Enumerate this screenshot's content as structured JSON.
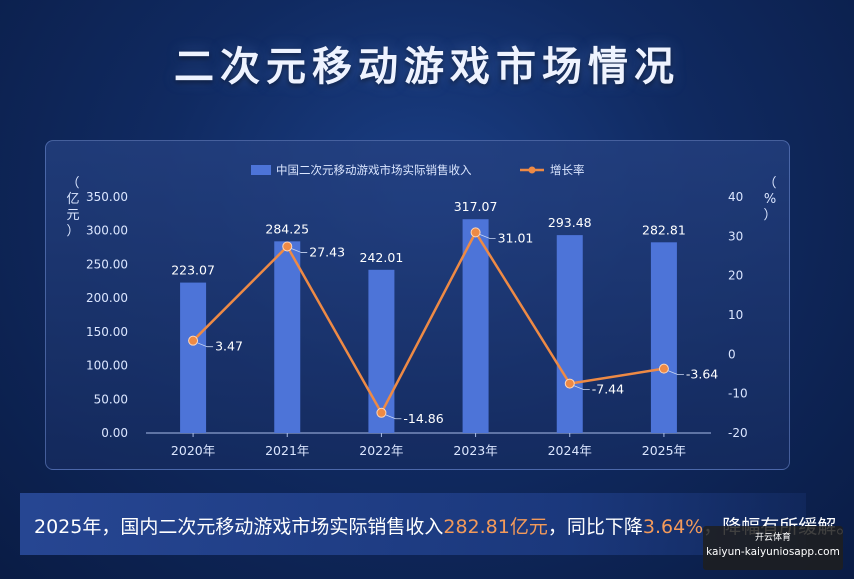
{
  "title": "二次元移动游戏市场情况",
  "chart_data": {
    "type": "bar+line",
    "categories": [
      "2020年",
      "2021年",
      "2022年",
      "2023年",
      "2024年",
      "2025年"
    ],
    "series": [
      {
        "name": "中国二次元移动游戏市场实际销售收入",
        "type": "bar",
        "axis": "left",
        "values": [
          223.07,
          284.25,
          242.01,
          317.07,
          293.48,
          282.81
        ],
        "labels": [
          "223.07",
          "284.25",
          "242.01",
          "317.07",
          "293.48",
          "282.81"
        ]
      },
      {
        "name": "增长率",
        "type": "line",
        "axis": "right",
        "values": [
          3.47,
          27.43,
          -14.86,
          31.01,
          -7.44,
          -3.64
        ],
        "labels": [
          "3.47",
          "27.43",
          "-14.86",
          "31.01",
          "-7.44",
          "-3.64"
        ]
      }
    ],
    "left_axis": {
      "label": "（亿元）",
      "ylim": [
        0,
        350
      ],
      "ticks": [
        "0.00",
        "50.00",
        "100.00",
        "150.00",
        "200.00",
        "250.00",
        "300.00",
        "350.00"
      ]
    },
    "right_axis": {
      "label": "（%）",
      "ylim": [
        -20,
        40
      ],
      "ticks": [
        "-20",
        "-10",
        "0",
        "10",
        "20",
        "30",
        "40"
      ]
    },
    "legend_position": "top-center",
    "grid": false,
    "colors": {
      "bar": "#4d74d8",
      "line": "#ee8a45"
    }
  },
  "caption": {
    "part1": "2025年，国内二次元移动游戏市场实际销售收入",
    "value": "282.81亿元",
    "part2": "，同比下降",
    "pct": "3.64%",
    "part3": "，降幅有所缓解。"
  },
  "watermark": {
    "top": "开云体育",
    "url": "kaiyun-kaiyuniosapp.com"
  }
}
